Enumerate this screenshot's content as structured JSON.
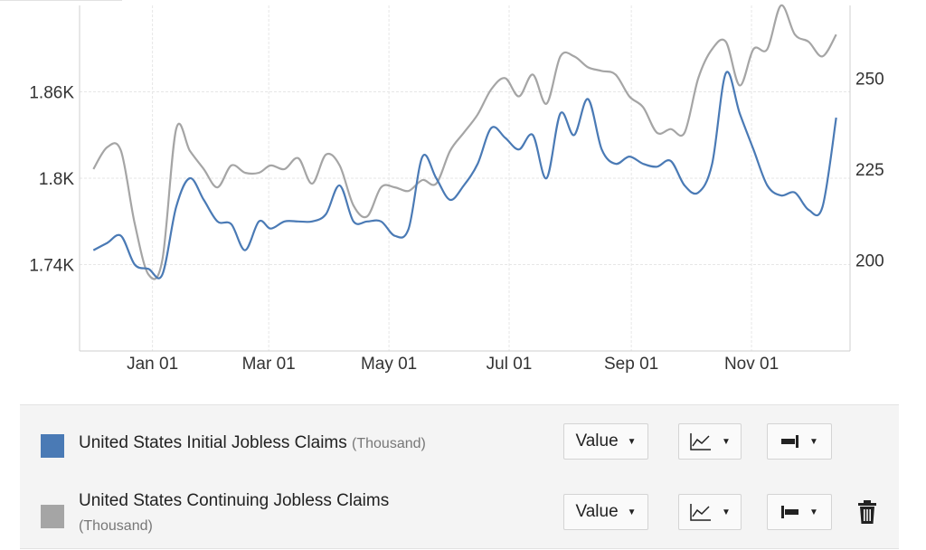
{
  "chart_data": {
    "type": "line",
    "title": "",
    "xlabel": "",
    "x_ticks": [
      "Jan 01",
      "Mar 01",
      "May 01",
      "Jul 01",
      "Sep 01",
      "Nov 01"
    ],
    "y_left": {
      "ticks": [
        "1.74K",
        "1.8K",
        "1.86K"
      ],
      "tick_values": [
        1740,
        1800,
        1860
      ],
      "range": [
        1680,
        1920
      ]
    },
    "y_right": {
      "ticks": [
        "200",
        "225",
        "250"
      ],
      "tick_values": [
        200,
        225,
        250
      ],
      "range": [
        175,
        270
      ]
    },
    "grid": true,
    "series": [
      {
        "name": "United States Initial Jobless Claims",
        "unit": "(Thousand)",
        "axis": "left",
        "color": "#4a7ab5",
        "x": [
          "Dec 02",
          "Dec 09",
          "Dec 16",
          "Dec 23",
          "Dec 30",
          "Jan 06",
          "Jan 13",
          "Jan 20",
          "Jan 27",
          "Feb 03",
          "Feb 10",
          "Feb 17",
          "Feb 24",
          "Mar 02",
          "Mar 09",
          "Mar 16",
          "Mar 23",
          "Mar 30",
          "Apr 06",
          "Apr 13",
          "Apr 20",
          "Apr 27",
          "May 04",
          "May 11",
          "May 18",
          "May 25",
          "Jun 01",
          "Jun 08",
          "Jun 15",
          "Jun 22",
          "Jun 29",
          "Jul 06",
          "Jul 13",
          "Jul 20",
          "Jul 27",
          "Aug 03",
          "Aug 10",
          "Aug 17",
          "Aug 24",
          "Aug 31",
          "Sep 07",
          "Sep 14",
          "Sep 21",
          "Sep 28",
          "Oct 05",
          "Oct 12",
          "Oct 19",
          "Oct 26",
          "Nov 02",
          "Nov 09",
          "Nov 16",
          "Nov 23",
          "Nov 30",
          "Dec 07",
          "Dec 14"
        ],
        "values": [
          1750,
          1755,
          1760,
          1740,
          1737,
          1733,
          1780,
          1800,
          1785,
          1770,
          1768,
          1750,
          1770,
          1765,
          1770,
          1770,
          1770,
          1775,
          1795,
          1770,
          1770,
          1770,
          1760,
          1765,
          1815,
          1800,
          1785,
          1795,
          1810,
          1835,
          1828,
          1820,
          1830,
          1800,
          1845,
          1830,
          1855,
          1820,
          1810,
          1815,
          1810,
          1808,
          1812,
          1795,
          1790,
          1810,
          1873,
          1845,
          1820,
          1795,
          1788,
          1790,
          1778,
          1780,
          1842
        ]
      },
      {
        "name": "United States Continuing Jobless Claims",
        "unit": "(Thousand)",
        "axis": "right",
        "color": "#a5a5a5",
        "x": [
          "Dec 02",
          "Dec 09",
          "Dec 16",
          "Dec 23",
          "Dec 30",
          "Jan 06",
          "Jan 13",
          "Jan 20",
          "Jan 27",
          "Feb 03",
          "Feb 10",
          "Feb 17",
          "Feb 24",
          "Mar 02",
          "Mar 09",
          "Mar 16",
          "Mar 23",
          "Mar 30",
          "Apr 06",
          "Apr 13",
          "Apr 20",
          "Apr 27",
          "May 04",
          "May 11",
          "May 18",
          "May 25",
          "Jun 01",
          "Jun 08",
          "Jun 15",
          "Jun 22",
          "Jun 29",
          "Jul 06",
          "Jul 13",
          "Jul 20",
          "Jul 27",
          "Aug 03",
          "Aug 10",
          "Aug 17",
          "Aug 24",
          "Aug 31",
          "Sep 07",
          "Sep 14",
          "Sep 21",
          "Sep 28",
          "Oct 05",
          "Oct 12",
          "Oct 19",
          "Oct 26",
          "Nov 02",
          "Nov 09",
          "Nov 16",
          "Nov 23",
          "Nov 30",
          "Dec 07",
          "Dec 14"
        ],
        "values": [
          225,
          231,
          230,
          210,
          196,
          200,
          236,
          230,
          225,
          220,
          226,
          224,
          224,
          226,
          225,
          228,
          221,
          229,
          226,
          215,
          212,
          220,
          220,
          219,
          222,
          221,
          230,
          235,
          240,
          247,
          250,
          245,
          251,
          243,
          256,
          256,
          253,
          252,
          251,
          245,
          242,
          235,
          236,
          235,
          250,
          258,
          260,
          248,
          258,
          258,
          270,
          262,
          260,
          256,
          262
        ]
      }
    ]
  },
  "legend": {
    "rows": [
      {
        "label": "United States Initial Jobless Claims",
        "unit": "(Thousand)",
        "color": "#4a7ab5",
        "value_button": "Value",
        "chart_type_icon": "line-chart-icon",
        "axis_icon": "axis-right-icon"
      },
      {
        "label": "United States Continuing Jobless Claims",
        "unit": "(Thousand)",
        "color": "#a5a5a5",
        "value_button": "Value",
        "chart_type_icon": "line-chart-icon",
        "axis_icon": "axis-left-icon",
        "delete_icon": "trash-icon"
      }
    ]
  }
}
